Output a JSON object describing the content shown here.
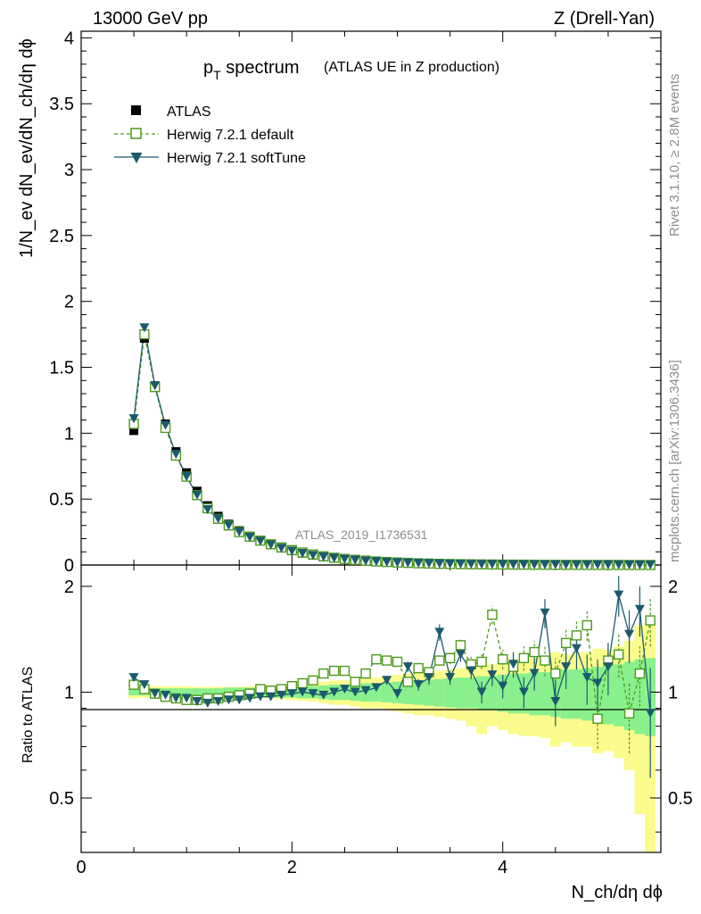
{
  "header": {
    "energy_label": "13000 GeV pp",
    "process_label": "Z (Drell-Yan)"
  },
  "side_labels": {
    "rivet": "Rivet 3.1.10, ≥ 2.8M events",
    "mcplots": "mcplots.cern.ch [arXiv:1306.3436]"
  },
  "watermark": "ATLAS_2019_I1736531",
  "colors": {
    "data": "#000000",
    "herwig_default": "#4d9a1c",
    "herwig_softtune": "#1b5a6e",
    "band_inner": "#88f08c",
    "band_outer": "#fbfb8c"
  },
  "chart_data": [
    {
      "type": "scatter",
      "panel": "main",
      "title_main": "p",
      "title_sub": "T",
      "title_rest": " spectrum",
      "title_note": "(ATLAS UE in Z production)",
      "ylabel": "1/N_ev dN_ev/dN_ch/dη dϕ",
      "xlim": [
        0,
        5.5
      ],
      "ylim": [
        0,
        4.05
      ],
      "yticks": [
        0,
        0.5,
        1,
        1.5,
        2,
        2.5,
        3,
        3.5,
        4
      ],
      "ytick_labels": [
        "0",
        "0.5",
        "1",
        "1.5",
        "2",
        "2.5",
        "3",
        "3.5",
        "4"
      ],
      "legend": {
        "position": "top-left",
        "entries": [
          "ATLAS",
          "Herwig 7.2.1 default",
          "Herwig 7.2.1 softTune"
        ]
      },
      "x": [
        0.5,
        0.6,
        0.7,
        0.8,
        0.9,
        1.0,
        1.1,
        1.2,
        1.3,
        1.4,
        1.5,
        1.6,
        1.7,
        1.8,
        1.9,
        2.0,
        2.1,
        2.2,
        2.3,
        2.4,
        2.5,
        2.6,
        2.7,
        2.8,
        2.9,
        3.0,
        3.1,
        3.2,
        3.3,
        3.4,
        3.5,
        3.6,
        3.7,
        3.8,
        3.9,
        4.0,
        4.1,
        4.2,
        4.3,
        4.4,
        4.5,
        4.6,
        4.7,
        4.8,
        4.9,
        5.0,
        5.1,
        5.2,
        5.3,
        5.4
      ],
      "series": [
        {
          "name": "ATLAS",
          "values": [
            1.02,
            1.72,
            1.36,
            1.07,
            0.86,
            0.7,
            0.56,
            0.45,
            0.37,
            0.31,
            0.26,
            0.22,
            0.185,
            0.155,
            0.13,
            0.108,
            0.09,
            0.075,
            0.062,
            0.052,
            0.044,
            0.037,
            0.031,
            0.026,
            0.022,
            0.018,
            0.015,
            0.013,
            0.011,
            0.009,
            0.0075,
            0.0063,
            0.0053,
            0.0045,
            0.0038,
            0.0032,
            0.0027,
            0.0023,
            0.0019,
            0.0016,
            0.0013,
            0.0011,
            0.0009,
            0.0008,
            0.0007,
            0.0006,
            0.0005,
            0.0004,
            0.0003,
            0.00025
          ]
        },
        {
          "name": "Herwig 7.2.1 default",
          "values": [
            1.07,
            1.75,
            1.35,
            1.04,
            0.83,
            0.67,
            0.53,
            0.43,
            0.35,
            0.3,
            0.25,
            0.215,
            0.185,
            0.157,
            0.133,
            0.113,
            0.095,
            0.08,
            0.066,
            0.055,
            0.046,
            0.039,
            0.033,
            0.027,
            0.023,
            0.019,
            0.016,
            0.013,
            0.011,
            0.009,
            0.0076,
            0.0064,
            0.0054,
            0.0046,
            0.0039,
            0.0033,
            0.0028,
            0.0024,
            0.002,
            0.0017,
            0.0014,
            0.0012,
            0.001,
            0.0008,
            0.0007,
            0.0006,
            0.0005,
            0.0004,
            0.0003,
            0.00025
          ]
        },
        {
          "name": "Herwig 7.2.1 softTune",
          "values": [
            1.11,
            1.8,
            1.36,
            1.06,
            0.84,
            0.67,
            0.53,
            0.42,
            0.35,
            0.3,
            0.25,
            0.21,
            0.18,
            0.152,
            0.127,
            0.106,
            0.088,
            0.073,
            0.061,
            0.051,
            0.043,
            0.036,
            0.03,
            0.025,
            0.021,
            0.018,
            0.015,
            0.013,
            0.011,
            0.009,
            0.0076,
            0.0064,
            0.0054,
            0.0046,
            0.0039,
            0.0033,
            0.0028,
            0.0024,
            0.002,
            0.0017,
            0.0014,
            0.0012,
            0.001,
            0.0008,
            0.0007,
            0.0006,
            0.0005,
            0.0004,
            0.0003,
            0.00025
          ]
        }
      ]
    },
    {
      "type": "scatter",
      "panel": "ratio",
      "ylabel": "Ratio to ATLAS",
      "xlabel": "N_ch/dη dϕ",
      "xlim": [
        0,
        5.5
      ],
      "ylim": [
        0.35,
        2.3
      ],
      "yticks": [
        0.5,
        1,
        2
      ],
      "ytick_labels": [
        "0.5",
        "1",
        "2"
      ],
      "xticks": [
        0,
        2,
        4
      ],
      "xtick_labels": [
        "0",
        "2",
        "4"
      ],
      "x": [
        0.5,
        0.6,
        0.7,
        0.8,
        0.9,
        1.0,
        1.1,
        1.2,
        1.3,
        1.4,
        1.5,
        1.6,
        1.7,
        1.8,
        1.9,
        2.0,
        2.1,
        2.2,
        2.3,
        2.4,
        2.5,
        2.6,
        2.7,
        2.8,
        2.9,
        3.0,
        3.1,
        3.2,
        3.3,
        3.4,
        3.5,
        3.6,
        3.7,
        3.8,
        3.9,
        4.0,
        4.1,
        4.2,
        4.3,
        4.4,
        4.5,
        4.6,
        4.7,
        4.8,
        4.9,
        5.0,
        5.1,
        5.2,
        5.3,
        5.4
      ],
      "band_inner_halfwidth": [
        0.02,
        0.02,
        0.025,
        0.025,
        0.025,
        0.025,
        0.025,
        0.025,
        0.025,
        0.03,
        0.03,
        0.03,
        0.03,
        0.035,
        0.035,
        0.035,
        0.04,
        0.04,
        0.045,
        0.05,
        0.05,
        0.055,
        0.06,
        0.06,
        0.065,
        0.07,
        0.075,
        0.08,
        0.085,
        0.09,
        0.095,
        0.1,
        0.1,
        0.11,
        0.11,
        0.12,
        0.13,
        0.13,
        0.14,
        0.14,
        0.15,
        0.16,
        0.16,
        0.17,
        0.18,
        0.19,
        0.2,
        0.22,
        0.24,
        0.25
      ],
      "band_outer_halfwidth": [
        0.04,
        0.035,
        0.04,
        0.04,
        0.04,
        0.04,
        0.035,
        0.035,
        0.035,
        0.035,
        0.035,
        0.04,
        0.04,
        0.04,
        0.045,
        0.05,
        0.055,
        0.06,
        0.07,
        0.08,
        0.08,
        0.09,
        0.1,
        0.1,
        0.11,
        0.12,
        0.13,
        0.14,
        0.14,
        0.15,
        0.16,
        0.17,
        0.2,
        0.24,
        0.2,
        0.22,
        0.24,
        0.25,
        0.25,
        0.26,
        0.3,
        0.28,
        0.3,
        0.3,
        0.33,
        0.32,
        0.35,
        0.4,
        0.55,
        0.65
      ],
      "series": [
        {
          "name": "Herwig 7.2.1 default",
          "values": [
            1.05,
            1.02,
            0.99,
            0.97,
            0.96,
            0.95,
            0.95,
            0.96,
            0.96,
            0.97,
            0.98,
            0.99,
            1.02,
            1.01,
            1.02,
            1.04,
            1.06,
            1.08,
            1.13,
            1.15,
            1.15,
            1.07,
            1.13,
            1.24,
            1.23,
            1.22,
            1.07,
            1.17,
            1.14,
            1.23,
            1.25,
            1.36,
            1.2,
            1.22,
            1.66,
            1.24,
            1.18,
            1.25,
            1.3,
            1.23,
            1.13,
            1.38,
            1.45,
            1.55,
            0.84,
            1.23,
            1.28,
            0.87,
            1.13,
            1.6
          ],
          "errors": [
            0.01,
            0.01,
            0.01,
            0.01,
            0.01,
            0.01,
            0.01,
            0.01,
            0.01,
            0.01,
            0.01,
            0.01,
            0.01,
            0.01,
            0.01,
            0.01,
            0.01,
            0.01,
            0.01,
            0.01,
            0.01,
            0.02,
            0.02,
            0.02,
            0.03,
            0.03,
            0.03,
            0.04,
            0.04,
            0.04,
            0.05,
            0.05,
            0.06,
            0.06,
            0.1,
            0.08,
            0.08,
            0.1,
            0.1,
            0.12,
            0.12,
            0.14,
            0.14,
            0.15,
            0.15,
            0.16,
            0.18,
            0.2,
            0.22,
            0.25
          ]
        },
        {
          "name": "Herwig 7.2.1 softTune",
          "values": [
            1.1,
            1.05,
            0.99,
            0.98,
            0.96,
            0.96,
            0.94,
            0.93,
            0.94,
            0.95,
            0.95,
            0.96,
            0.97,
            0.97,
            0.98,
            0.99,
            1.0,
            0.99,
            0.98,
            1.0,
            1.02,
            1.0,
            1.01,
            1.03,
            1.08,
            0.99,
            1.18,
            1.05,
            1.1,
            1.48,
            1.1,
            1.28,
            1.15,
            1.0,
            1.12,
            1.04,
            1.2,
            1.0,
            1.13,
            1.68,
            0.94,
            1.18,
            1.33,
            1.1,
            1.06,
            1.18,
            1.89,
            1.46,
            1.72,
            0.87
          ],
          "errors": [
            0.01,
            0.01,
            0.01,
            0.01,
            0.01,
            0.01,
            0.01,
            0.01,
            0.01,
            0.01,
            0.01,
            0.01,
            0.01,
            0.01,
            0.01,
            0.01,
            0.01,
            0.01,
            0.01,
            0.01,
            0.01,
            0.02,
            0.02,
            0.02,
            0.03,
            0.03,
            0.04,
            0.04,
            0.05,
            0.08,
            0.05,
            0.06,
            0.06,
            0.07,
            0.08,
            0.08,
            0.1,
            0.1,
            0.12,
            0.16,
            0.14,
            0.16,
            0.17,
            0.18,
            0.18,
            0.2,
            0.25,
            0.25,
            0.28,
            0.3
          ]
        }
      ]
    }
  ]
}
